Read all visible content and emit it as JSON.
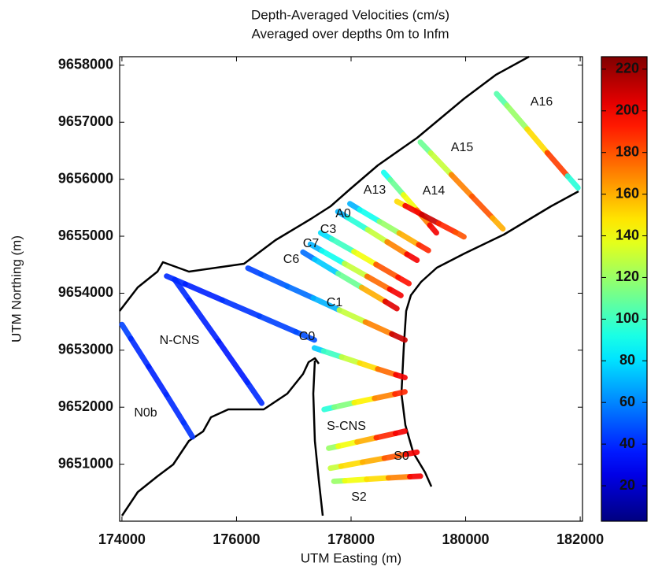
{
  "chart_data": {
    "type": "scatter",
    "title": "Depth-Averaged Velocities (cm/s)",
    "subtitle": "Averaged over depths 0m to Infm",
    "x_label": "UTM Easting (m)",
    "y_label": "UTM Northing (m)",
    "xlim": [
      173960,
      182040
    ],
    "ylim": [
      9650000,
      9658150
    ],
    "xticks": [
      174000,
      176000,
      178000,
      180000,
      182000
    ],
    "yticks": [
      9651000,
      9652000,
      9653000,
      9654000,
      9655000,
      9656000,
      9657000,
      9658000
    ],
    "colormap": "jet",
    "clim": [
      3,
      226
    ],
    "cticks": [
      20,
      40,
      60,
      80,
      100,
      120,
      140,
      160,
      180,
      200,
      220
    ],
    "series": [
      {
        "name": "N0b",
        "x": [
          174000,
          174310,
          174620,
          174930,
          175230
        ],
        "y": [
          9653450,
          9652960,
          9652470,
          9651970,
          9651480
        ],
        "values": [
          45,
          40,
          38,
          40,
          42
        ]
      },
      {
        "name": "N-CNS",
        "x": [
          174780,
          175430,
          176070,
          176720,
          177360,
          null,
          174920,
          175430,
          175940,
          176440
        ],
        "y": [
          9654300,
          9654020,
          9653740,
          9653460,
          9653180,
          null,
          9654240,
          9653520,
          9652800,
          9652070
        ],
        "values": [
          40,
          38,
          42,
          45,
          48,
          null,
          40,
          38,
          36,
          40
        ]
      },
      {
        "name": "C0",
        "x": [
          177360,
          177680,
          177990,
          178310,
          178620,
          178940
        ],
        "y": [
          9653040,
          9652930,
          9652830,
          9652720,
          9652620,
          9652520
        ],
        "values": [
          75,
          100,
          130,
          150,
          175,
          200
        ]
      },
      {
        "name": "C1",
        "x": [
          176200,
          176650,
          177110,
          177570,
          178020,
          178480,
          178940
        ],
        "y": [
          9654440,
          9654230,
          9654020,
          9653810,
          9653600,
          9653390,
          9653180
        ],
        "values": [
          45,
          50,
          55,
          70,
          130,
          170,
          210
        ]
      },
      {
        "name": "C6",
        "x": [
          177160,
          177570,
          177980,
          178390,
          178800
        ],
        "y": [
          9654720,
          9654470,
          9654220,
          9653980,
          9653730
        ],
        "values": [
          55,
          75,
          110,
          160,
          205
        ]
      },
      {
        "name": "C7",
        "x": [
          177290,
          177690,
          178080,
          178480,
          178870
        ],
        "y": [
          9654860,
          9654630,
          9654410,
          9654180,
          9653960
        ],
        "values": [
          70,
          90,
          130,
          175,
          200
        ]
      },
      {
        "name": "C3",
        "x": [
          177470,
          177860,
          178240,
          178630,
          179010
        ],
        "y": [
          9655060,
          9654840,
          9654620,
          9654390,
          9654170
        ],
        "values": [
          80,
          100,
          140,
          180,
          195
        ]
      },
      {
        "name": "A0",
        "x": [
          177770,
          178120,
          178460,
          178800,
          179150
        ],
        "y": [
          9655430,
          9655220,
          9655010,
          9654790,
          9654580
        ],
        "values": [
          70,
          95,
          130,
          170,
          200
        ]
      },
      {
        "name": "A13",
        "x": [
          177980,
          178320,
          178670,
          179010,
          179350
        ],
        "y": [
          9655570,
          9655360,
          9655160,
          9654950,
          9654750
        ],
        "values": [
          70,
          90,
          120,
          160,
          190
        ]
      },
      {
        "x": [
          178570,
          178800,
          179030,
          179260,
          179490
        ],
        "y": [
          9656120,
          9655860,
          9655590,
          9655330,
          9655060
        ],
        "values": [
          90,
          110,
          140,
          170,
          200
        ]
      },
      {
        "name": "A14",
        "x": [
          178800,
          179090,
          179380,
          179680,
          179970
        ],
        "y": [
          9655610,
          9655460,
          9655300,
          9655150,
          9654990
        ],
        "values": [
          150,
          200,
          210,
          190,
          180
        ]
      },
      {
        "name": "A15",
        "x": [
          179210,
          179570,
          179930,
          180290,
          180650
        ],
        "y": [
          9656650,
          9656270,
          9655890,
          9655510,
          9655130
        ],
        "values": [
          110,
          130,
          170,
          180,
          160
        ]
      },
      {
        "name": "A16",
        "x": [
          180540,
          180900,
          181250,
          181600,
          181960
        ],
        "y": [
          9657500,
          9657090,
          9656670,
          9656260,
          9655850
        ],
        "values": [
          105,
          120,
          150,
          185,
          95
        ]
      },
      {
        "x": [
          177530,
          177880,
          178230,
          178590,
          178940
        ],
        "y": [
          9651960,
          9652040,
          9652120,
          9652190,
          9652270
        ],
        "values": [
          95,
          115,
          145,
          170,
          190
        ]
      },
      {
        "name": "S-CNS",
        "x": [
          177610,
          177940,
          178270,
          178610,
          178940
        ],
        "y": [
          9651280,
          9651350,
          9651430,
          9651500,
          9651580
        ],
        "values": [
          120,
          140,
          160,
          190,
          200
        ]
      },
      {
        "name": "S0",
        "x": [
          177640,
          178010,
          178390,
          178770,
          179150
        ],
        "y": [
          9650930,
          9651000,
          9651070,
          9651140,
          9651210
        ],
        "values": [
          130,
          150,
          160,
          180,
          200
        ]
      },
      {
        "name": "S2",
        "x": [
          177700,
          178080,
          178460,
          178840,
          179210
        ],
        "y": [
          9650700,
          9650720,
          9650750,
          9650770,
          9650790
        ],
        "values": [
          120,
          140,
          150,
          170,
          200
        ]
      }
    ]
  }
}
